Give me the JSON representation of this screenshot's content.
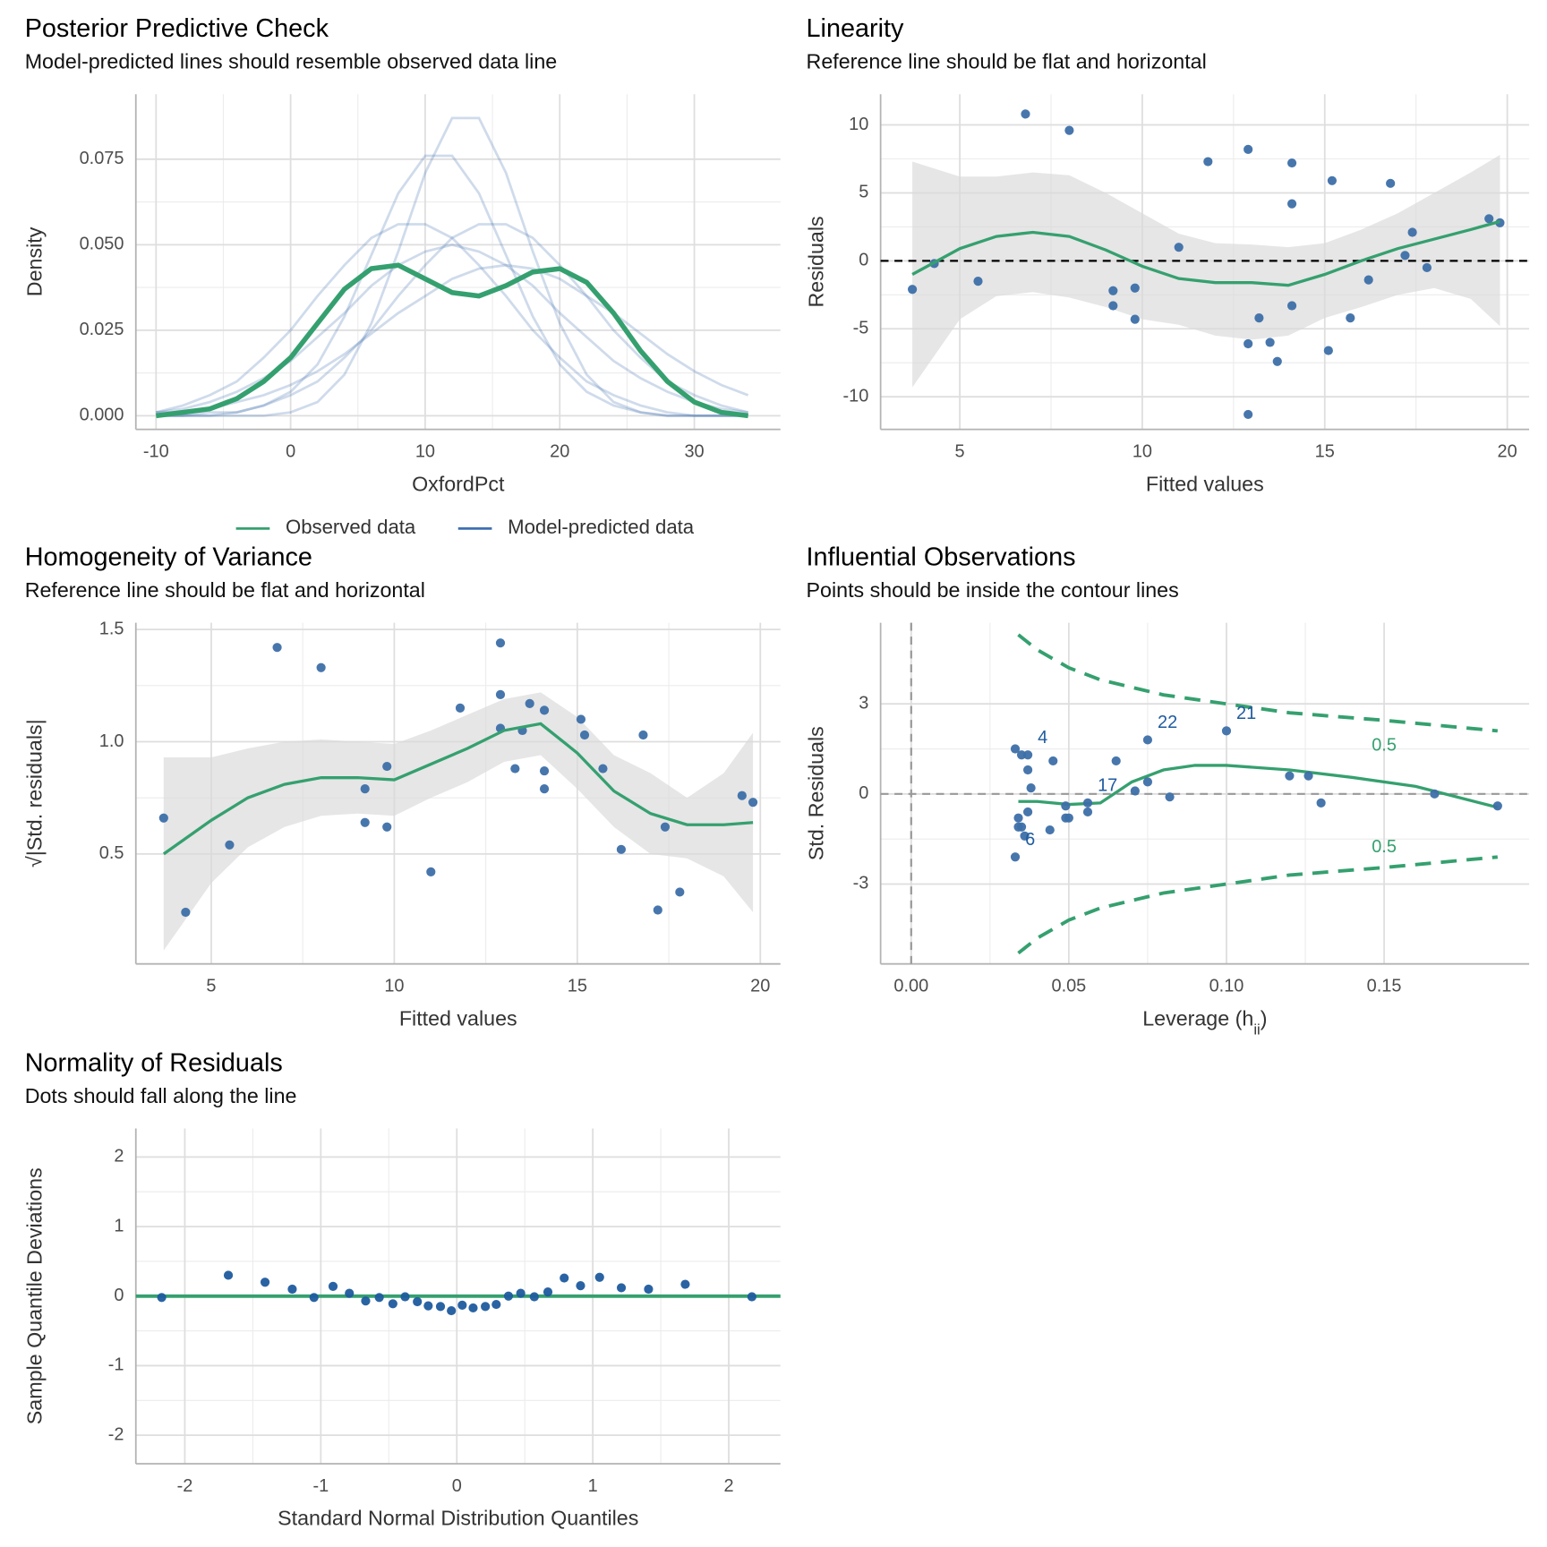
{
  "chart_data": [
    {
      "type": "density",
      "title": "Posterior Predictive Check",
      "subtitle": "Model-predicted lines should resemble observed data line",
      "xlabel": "OxfordPct",
      "ylabel": "Density",
      "x": [
        -10,
        -8,
        -6,
        -4,
        -2,
        0,
        2,
        4,
        6,
        8,
        10,
        12,
        14,
        16,
        18,
        20,
        22,
        24,
        26,
        28,
        30,
        32,
        34
      ],
      "series": [
        {
          "name": "Observed data",
          "color": "#35a06f",
          "values": [
            0.0,
            0.001,
            0.002,
            0.005,
            0.01,
            0.017,
            0.027,
            0.037,
            0.043,
            0.044,
            0.04,
            0.036,
            0.035,
            0.038,
            0.042,
            0.043,
            0.039,
            0.03,
            0.019,
            0.01,
            0.004,
            0.001,
            0.0
          ]
        },
        {
          "name": "Model-predicted data",
          "color": "#3e6fb0",
          "lines": [
            [
              0.001,
              0.002,
              0.004,
              0.007,
              0.011,
              0.016,
              0.023,
              0.03,
              0.038,
              0.044,
              0.048,
              0.05,
              0.048,
              0.044,
              0.038,
              0.03,
              0.023,
              0.016,
              0.011,
              0.007,
              0.004,
              0.002,
              0.001
            ],
            [
              0.0,
              0.0,
              0.0,
              0.001,
              0.003,
              0.007,
              0.015,
              0.029,
              0.047,
              0.065,
              0.076,
              0.076,
              0.065,
              0.047,
              0.029,
              0.015,
              0.007,
              0.003,
              0.001,
              0.0,
              0.0,
              0.0,
              0.0
            ],
            [
              0.0,
              0.0,
              0.001,
              0.001,
              0.003,
              0.006,
              0.01,
              0.017,
              0.025,
              0.035,
              0.044,
              0.052,
              0.056,
              0.056,
              0.052,
              0.044,
              0.035,
              0.025,
              0.017,
              0.01,
              0.006,
              0.003,
              0.001
            ],
            [
              0.0,
              0.0,
              0.0,
              0.0,
              0.0,
              0.001,
              0.004,
              0.012,
              0.027,
              0.048,
              0.071,
              0.087,
              0.087,
              0.071,
              0.048,
              0.027,
              0.012,
              0.004,
              0.001,
              0.0,
              0.0,
              0.0,
              0.0
            ],
            [
              0.001,
              0.001,
              0.002,
              0.004,
              0.006,
              0.009,
              0.013,
              0.018,
              0.024,
              0.03,
              0.035,
              0.04,
              0.043,
              0.044,
              0.043,
              0.04,
              0.035,
              0.03,
              0.024,
              0.018,
              0.013,
              0.009,
              0.006
            ],
            [
              0.001,
              0.003,
              0.006,
              0.01,
              0.017,
              0.025,
              0.035,
              0.044,
              0.052,
              0.056,
              0.056,
              0.052,
              0.044,
              0.035,
              0.025,
              0.017,
              0.01,
              0.006,
              0.003,
              0.001,
              0.0,
              0.0,
              0.0
            ]
          ]
        }
      ],
      "xlim": [
        -11.5,
        36.4
      ],
      "ylim": [
        -0.004,
        0.094
      ],
      "xticks": [
        -10,
        0,
        10,
        20,
        30
      ],
      "yticks": [
        {
          "value": 0,
          "label": "0.000"
        },
        0.025,
        {
          "value": 0.05,
          "label": "0.050"
        },
        0.075
      ],
      "grid": true,
      "legend": "bottom"
    },
    {
      "type": "scatter_smooth",
      "title": "Linearity",
      "subtitle": "Reference line should be flat and horizontal",
      "xlabel": "Fitted values",
      "ylabel": "Residuals",
      "points": {
        "color": "#3d6fa8",
        "x": [
          3.7,
          4.3,
          5.5,
          6.8,
          8.0,
          9.2,
          9.2,
          9.8,
          9.8,
          11.0,
          11.8,
          12.9,
          12.9,
          12.9,
          13.2,
          13.5,
          13.7,
          14.1,
          14.1,
          14.1,
          15.2,
          15.1,
          15.7,
          16.2,
          16.8,
          17.2,
          17.4,
          17.8,
          19.5,
          19.8
        ],
        "y": [
          -2.1,
          -0.2,
          -1.5,
          10.8,
          9.6,
          -2.2,
          -3.3,
          -2.0,
          -4.3,
          1.0,
          7.3,
          8.2,
          -6.1,
          -11.3,
          -4.2,
          -6.0,
          -7.4,
          7.2,
          4.2,
          -3.3,
          5.9,
          -6.6,
          -4.2,
          -1.4,
          5.7,
          0.4,
          2.1,
          -0.5,
          3.1,
          2.8
        ]
      },
      "smooth": {
        "color": "#35a06f",
        "x": [
          3.7,
          5,
          6,
          7,
          8,
          9,
          10,
          11,
          12,
          13,
          14,
          15,
          16,
          17,
          18,
          19,
          19.8
        ],
        "y": [
          -1.0,
          0.9,
          1.8,
          2.1,
          1.8,
          0.8,
          -0.4,
          -1.3,
          -1.6,
          -1.6,
          -1.8,
          -1.0,
          0.0,
          0.9,
          1.6,
          2.3,
          2.9
        ],
        "upper": [
          7.3,
          6.2,
          6.2,
          6.5,
          6.3,
          5.0,
          3.5,
          2.0,
          1.3,
          1.2,
          1.0,
          1.3,
          2.3,
          3.5,
          5.0,
          6.5,
          7.8
        ],
        "lower": [
          -9.3,
          -4.3,
          -2.6,
          -2.3,
          -2.7,
          -3.4,
          -4.3,
          -4.7,
          -5.5,
          -5.8,
          -5.5,
          -4.2,
          -3.4,
          -2.5,
          -2.0,
          -2.8,
          -4.8
        ]
      },
      "reference_line": 0,
      "xlim": [
        2.83,
        20.6
      ],
      "ylim": [
        -12.4,
        12.26
      ],
      "xticks": [
        5,
        10,
        15,
        20
      ],
      "yticks": [
        -10,
        -5,
        0,
        5,
        10
      ],
      "grid": true
    },
    {
      "type": "scatter_smooth",
      "title": "Homogeneity of Variance",
      "subtitle": "Reference line should be flat and horizontal",
      "xlabel": "Fitted values",
      "ylabel": "√|Std. residuals|",
      "points": {
        "color": "#3d6fa8",
        "x": [
          3.7,
          4.3,
          5.5,
          6.8,
          8.0,
          9.2,
          9.2,
          9.8,
          9.8,
          11.0,
          11.8,
          12.9,
          12.9,
          12.9,
          13.3,
          13.5,
          13.7,
          14.1,
          14.1,
          14.1,
          15.1,
          15.2,
          15.7,
          16.2,
          16.8,
          17.2,
          17.4,
          17.8,
          19.5,
          19.8
        ],
        "y": [
          0.66,
          0.24,
          0.54,
          1.42,
          1.33,
          0.79,
          0.64,
          0.89,
          0.62,
          0.42,
          1.15,
          1.44,
          1.21,
          1.06,
          0.88,
          1.05,
          1.17,
          1.14,
          0.87,
          0.79,
          1.1,
          1.03,
          0.88,
          0.52,
          1.03,
          0.25,
          0.62,
          0.33,
          0.76,
          0.73
        ]
      },
      "smooth": {
        "color": "#35a06f",
        "x": [
          3.7,
          5,
          6,
          7,
          8,
          9,
          10,
          11,
          12,
          13,
          14,
          15,
          16,
          17,
          18,
          19,
          19.8
        ],
        "y": [
          0.5,
          0.65,
          0.75,
          0.81,
          0.84,
          0.84,
          0.83,
          0.9,
          0.97,
          1.05,
          1.08,
          0.95,
          0.78,
          0.68,
          0.63,
          0.63,
          0.64
        ],
        "upper": [
          0.93,
          0.93,
          0.97,
          1.0,
          1.01,
          1.0,
          0.99,
          1.05,
          1.12,
          1.19,
          1.22,
          1.11,
          0.94,
          0.86,
          0.75,
          0.86,
          1.04
        ],
        "lower": [
          0.07,
          0.37,
          0.53,
          0.62,
          0.67,
          0.68,
          0.67,
          0.75,
          0.82,
          0.91,
          0.94,
          0.79,
          0.62,
          0.5,
          0.48,
          0.4,
          0.24
        ]
      },
      "xlim": [
        2.94,
        20.55
      ],
      "ylim": [
        0.01,
        1.53
      ],
      "xticks": [
        5,
        10,
        15,
        20
      ],
      "yticks": [
        0.5,
        {
          "value": 1,
          "label": "1.0"
        },
        1.5
      ],
      "grid": true
    },
    {
      "type": "influence",
      "title": "Influential Observations",
      "subtitle": "Points should be inside the contour lines",
      "xlabel": "Leverage (h",
      "xlabel_sub": "ii",
      "xlabel_end": ")",
      "ylabel": "Std. Residuals",
      "points": {
        "color": "#3d6fa8",
        "label_color": "#1f5b9e",
        "x": [
          0.033,
          0.034,
          0.034,
          0.035,
          0.035,
          0.036,
          0.037,
          0.037,
          0.037,
          0.038,
          0.033,
          0.044,
          0.045,
          0.049,
          0.049,
          0.05,
          0.056,
          0.056,
          0.065,
          0.071,
          0.075,
          0.075,
          0.082,
          0.1,
          0.12,
          0.126,
          0.13,
          0.166,
          0.186
        ],
        "y": [
          1.5,
          -0.8,
          -1.1,
          1.3,
          -1.1,
          -1.4,
          1.3,
          0.8,
          -0.6,
          0.2,
          -2.1,
          -1.2,
          1.1,
          -0.4,
          -0.8,
          -0.8,
          -0.3,
          -0.6,
          1.1,
          0.1,
          0.4,
          1.8,
          -0.1,
          2.1,
          0.6,
          0.6,
          -0.3,
          0.0,
          -0.4
        ],
        "labels": [
          null,
          null,
          null,
          null,
          null,
          null,
          "4",
          null,
          null,
          null,
          "6",
          null,
          null,
          null,
          null,
          null,
          "17",
          null,
          null,
          null,
          null,
          "22",
          null,
          "21",
          null,
          null,
          null,
          null,
          null
        ]
      },
      "smooth": {
        "color": "#35a06f",
        "x": [
          0.034,
          0.04,
          0.05,
          0.06,
          0.07,
          0.08,
          0.09,
          0.1,
          0.12,
          0.14,
          0.16,
          0.186
        ],
        "y": [
          -0.25,
          -0.25,
          -0.35,
          -0.3,
          0.4,
          0.8,
          0.95,
          0.95,
          0.8,
          0.55,
          0.25,
          -0.45
        ]
      },
      "contours": [
        {
          "label": "0.5",
          "x": [
            0.034,
            0.04,
            0.05,
            0.06,
            0.08,
            0.1,
            0.12,
            0.15,
            0.186
          ],
          "y": [
            5.3,
            4.8,
            4.2,
            3.8,
            3.3,
            3.0,
            2.7,
            2.45,
            2.1
          ]
        },
        {
          "label": "0.5",
          "x": [
            0.034,
            0.04,
            0.05,
            0.06,
            0.08,
            0.1,
            0.12,
            0.15,
            0.186
          ],
          "y": [
            -5.3,
            -4.8,
            -4.2,
            -3.8,
            -3.3,
            -3.0,
            -2.7,
            -2.45,
            -2.1
          ]
        }
      ],
      "reference_x": 0,
      "reference_y": 0,
      "xlim": [
        -0.0097,
        0.196
      ],
      "ylim": [
        -5.66,
        5.7
      ],
      "xticks": [
        {
          "value": 0,
          "label": "0.00"
        },
        0.05,
        {
          "value": 0.1,
          "label": "0.10"
        },
        0.15
      ],
      "yticks": [
        -3,
        0,
        3
      ],
      "grid": true
    },
    {
      "type": "qq",
      "title": "Normality of Residuals",
      "subtitle": "Dots should fall along the line",
      "xlabel": "Standard Normal Distribution Quantiles",
      "ylabel": "Sample Quantile Deviations",
      "points": {
        "color": "#1f5b9e",
        "x": [
          -2.17,
          -1.68,
          -1.41,
          -1.21,
          -1.05,
          -0.91,
          -0.79,
          -0.67,
          -0.57,
          -0.47,
          -0.38,
          -0.29,
          -0.21,
          -0.12,
          -0.04,
          0.04,
          0.12,
          0.21,
          0.29,
          0.38,
          0.47,
          0.57,
          0.67,
          0.79,
          0.91,
          1.05,
          1.21,
          1.41,
          1.68,
          2.17
        ],
        "y": [
          -0.02,
          0.3,
          0.2,
          0.1,
          -0.02,
          0.14,
          0.04,
          -0.07,
          -0.02,
          -0.11,
          -0.01,
          -0.08,
          -0.14,
          -0.15,
          -0.21,
          -0.13,
          -0.17,
          -0.15,
          -0.12,
          0.0,
          0.04,
          -0.01,
          0.06,
          0.26,
          0.15,
          0.27,
          0.12,
          0.1,
          0.17,
          -0.01
        ]
      },
      "line": {
        "intercept": 0,
        "slope": 0,
        "color": "#35a06f"
      },
      "xlim": [
        -2.36,
        2.38
      ],
      "ylim": [
        -2.41,
        2.41
      ],
      "xticks": [
        -2,
        -1,
        0,
        1,
        2
      ],
      "yticks": [
        -2,
        -1,
        0,
        1,
        2
      ],
      "grid": true
    }
  ]
}
